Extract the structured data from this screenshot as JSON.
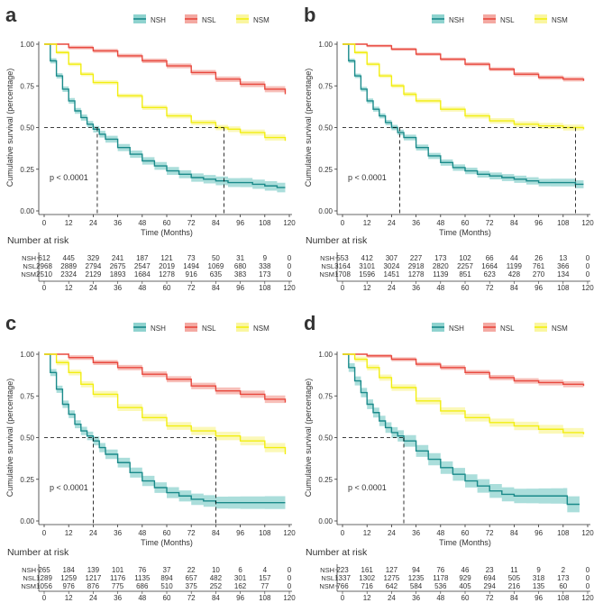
{
  "colors": {
    "NSH": "#1a8a8a",
    "NSL": "#e8483e",
    "NSM": "#f2ee10",
    "NSH_ci": "#8fd3cf",
    "NSL_ci": "#f4a9a2",
    "NSM_ci": "#faf6a0"
  },
  "chart_data": [
    {
      "type": "line",
      "panel_label": "a",
      "legend": [
        "NSH",
        "NSL",
        "NSM"
      ],
      "xlabel": "Time (Months)",
      "ylabel": "Cumulative survival (percentage)",
      "xlim": [
        0,
        120
      ],
      "ylim": [
        0,
        1
      ],
      "x_ticks": [
        "0",
        "12",
        "24",
        "36",
        "48",
        "60",
        "72",
        "84",
        "96",
        "108",
        "120"
      ],
      "y_ticks": [
        "0.00",
        "0.25",
        "0.50",
        "0.75",
        "1.00"
      ],
      "pvalue_text": "p < 0.0001",
      "median_lines": [
        26,
        88
      ],
      "series": [
        {
          "name": "NSH",
          "x": [
            0,
            3,
            6,
            9,
            12,
            15,
            18,
            21,
            24,
            27,
            30,
            36,
            42,
            48,
            54,
            60,
            66,
            72,
            78,
            84,
            90,
            96,
            102,
            108,
            114,
            118
          ],
          "y": [
            1,
            0.9,
            0.81,
            0.73,
            0.66,
            0.6,
            0.56,
            0.52,
            0.49,
            0.46,
            0.43,
            0.38,
            0.34,
            0.3,
            0.27,
            0.24,
            0.22,
            0.2,
            0.19,
            0.18,
            0.17,
            0.17,
            0.16,
            0.15,
            0.14,
            0.14
          ],
          "ci": 0.03
        },
        {
          "name": "NSL",
          "x": [
            0,
            12,
            24,
            36,
            48,
            60,
            72,
            84,
            96,
            108,
            118
          ],
          "y": [
            1,
            0.98,
            0.96,
            0.93,
            0.9,
            0.87,
            0.83,
            0.79,
            0.76,
            0.73,
            0.7
          ],
          "ci": 0.02
        },
        {
          "name": "NSM",
          "x": [
            0,
            6,
            12,
            18,
            24,
            36,
            48,
            60,
            72,
            84,
            90,
            96,
            108,
            118
          ],
          "y": [
            1,
            0.95,
            0.88,
            0.82,
            0.77,
            0.69,
            0.62,
            0.57,
            0.53,
            0.5,
            0.49,
            0.47,
            0.44,
            0.42
          ],
          "ci": 0.02
        }
      ],
      "risk_table": {
        "title": "Number at risk",
        "rows": [
          {
            "name": "NSH",
            "values": [
              "612",
              "445",
              "329",
              "241",
              "187",
              "121",
              "73",
              "50",
              "31",
              "9",
              "0"
            ]
          },
          {
            "name": "NSL",
            "values": [
              "2968",
              "2889",
              "2794",
              "2675",
              "2547",
              "2019",
              "1494",
              "1069",
              "680",
              "338",
              "0"
            ]
          },
          {
            "name": "NSM",
            "values": [
              "2510",
              "2324",
              "2129",
              "1893",
              "1684",
              "1278",
              "916",
              "635",
              "383",
              "173",
              "0"
            ]
          }
        ]
      }
    },
    {
      "type": "line",
      "panel_label": "b",
      "legend": [
        "NSH",
        "NSL",
        "NSM"
      ],
      "xlabel": "Time (Months)",
      "ylabel": "Cumulative survival (percentage)",
      "xlim": [
        0,
        120
      ],
      "ylim": [
        0,
        1
      ],
      "x_ticks": [
        "0",
        "12",
        "24",
        "36",
        "48",
        "60",
        "72",
        "84",
        "96",
        "108",
        "120"
      ],
      "y_ticks": [
        "0.00",
        "0.25",
        "0.50",
        "0.75",
        "1.00"
      ],
      "pvalue_text": "p < 0.0001",
      "median_lines": [
        28,
        114
      ],
      "series": [
        {
          "name": "NSH",
          "x": [
            0,
            3,
            6,
            9,
            12,
            15,
            18,
            21,
            24,
            27,
            30,
            36,
            42,
            48,
            54,
            60,
            66,
            72,
            78,
            84,
            90,
            96,
            102,
            108,
            114,
            118
          ],
          "y": [
            1,
            0.9,
            0.81,
            0.73,
            0.66,
            0.61,
            0.57,
            0.53,
            0.5,
            0.47,
            0.44,
            0.38,
            0.33,
            0.29,
            0.26,
            0.24,
            0.22,
            0.21,
            0.2,
            0.19,
            0.18,
            0.17,
            0.17,
            0.17,
            0.16,
            0.16
          ],
          "ci": 0.025
        },
        {
          "name": "NSL",
          "x": [
            0,
            12,
            24,
            36,
            48,
            60,
            72,
            84,
            96,
            108,
            118
          ],
          "y": [
            1,
            0.99,
            0.97,
            0.94,
            0.91,
            0.88,
            0.85,
            0.82,
            0.8,
            0.79,
            0.78
          ],
          "ci": 0.015
        },
        {
          "name": "NSM",
          "x": [
            0,
            6,
            12,
            18,
            24,
            30,
            36,
            48,
            60,
            72,
            84,
            96,
            108,
            118
          ],
          "y": [
            1,
            0.95,
            0.88,
            0.81,
            0.75,
            0.7,
            0.66,
            0.61,
            0.57,
            0.54,
            0.52,
            0.51,
            0.5,
            0.49
          ],
          "ci": 0.02
        }
      ],
      "risk_table": {
        "title": "Number at risk",
        "rows": [
          {
            "name": "NSH",
            "values": [
              "553",
              "412",
              "307",
              "227",
              "173",
              "102",
              "66",
              "44",
              "26",
              "13",
              "0"
            ]
          },
          {
            "name": "NSL",
            "values": [
              "3164",
              "3101",
              "3024",
              "2918",
              "2820",
              "2257",
              "1664",
              "1199",
              "761",
              "366",
              "0"
            ]
          },
          {
            "name": "NSM",
            "values": [
              "1708",
              "1596",
              "1451",
              "1278",
              "1139",
              "851",
              "623",
              "428",
              "270",
              "134",
              "0"
            ]
          }
        ]
      }
    },
    {
      "type": "line",
      "panel_label": "c",
      "legend": [
        "NSH",
        "NSL",
        "NSM"
      ],
      "xlabel": "Time (Months)",
      "ylabel": "Cumulative survival (percentage)",
      "xlim": [
        0,
        120
      ],
      "ylim": [
        0,
        1
      ],
      "x_ticks": [
        "0",
        "12",
        "24",
        "36",
        "48",
        "60",
        "72",
        "84",
        "96",
        "108",
        "120"
      ],
      "y_ticks": [
        "0.00",
        "0.25",
        "0.50",
        "0.75",
        "1.00"
      ],
      "pvalue_text": "p < 0.0001",
      "median_lines": [
        24,
        84
      ],
      "series": [
        {
          "name": "NSH",
          "x": [
            0,
            3,
            6,
            9,
            12,
            15,
            18,
            21,
            24,
            27,
            30,
            36,
            42,
            48,
            54,
            60,
            66,
            72,
            78,
            84,
            90,
            96,
            108,
            118
          ],
          "y": [
            1,
            0.89,
            0.79,
            0.7,
            0.64,
            0.58,
            0.54,
            0.51,
            0.48,
            0.44,
            0.4,
            0.35,
            0.29,
            0.24,
            0.2,
            0.17,
            0.15,
            0.13,
            0.12,
            0.11,
            0.11,
            0.11,
            0.11,
            0.11
          ],
          "ci": 0.04
        },
        {
          "name": "NSL",
          "x": [
            0,
            12,
            24,
            36,
            48,
            60,
            72,
            84,
            96,
            108,
            118
          ],
          "y": [
            1,
            0.98,
            0.95,
            0.92,
            0.88,
            0.85,
            0.81,
            0.78,
            0.76,
            0.73,
            0.71
          ],
          "ci": 0.025
        },
        {
          "name": "NSM",
          "x": [
            0,
            6,
            12,
            18,
            24,
            36,
            48,
            60,
            72,
            84,
            96,
            108,
            118
          ],
          "y": [
            1,
            0.95,
            0.89,
            0.82,
            0.76,
            0.68,
            0.62,
            0.57,
            0.54,
            0.51,
            0.48,
            0.44,
            0.4
          ],
          "ci": 0.03
        }
      ],
      "risk_table": {
        "title": "Number at risk",
        "rows": [
          {
            "name": "NSH",
            "values": [
              "265",
              "184",
              "139",
              "101",
              "76",
              "37",
              "22",
              "10",
              "6",
              "4",
              "0"
            ]
          },
          {
            "name": "NSL",
            "values": [
              "1289",
              "1259",
              "1217",
              "1176",
              "1135",
              "894",
              "657",
              "482",
              "301",
              "157",
              "0"
            ]
          },
          {
            "name": "NSM",
            "values": [
              "1056",
              "976",
              "876",
              "775",
              "686",
              "510",
              "375",
              "252",
              "162",
              "77",
              "0"
            ]
          }
        ]
      }
    },
    {
      "type": "line",
      "panel_label": "d",
      "legend": [
        "NSH",
        "NSL",
        "NSM"
      ],
      "xlabel": "Time (Months)",
      "ylabel": "Cumulative survival (percentage)",
      "xlim": [
        0,
        120
      ],
      "ylim": [
        0,
        1
      ],
      "x_ticks": [
        "0",
        "12",
        "24",
        "36",
        "48",
        "60",
        "72",
        "84",
        "96",
        "108",
        "120"
      ],
      "y_ticks": [
        "0.00",
        "0.25",
        "0.50",
        "0.75",
        "1.00"
      ],
      "pvalue_text": "p < 0.0001",
      "median_lines": [
        30
      ],
      "series": [
        {
          "name": "NSH",
          "x": [
            0,
            3,
            6,
            9,
            12,
            15,
            18,
            21,
            24,
            27,
            30,
            36,
            42,
            48,
            54,
            60,
            66,
            72,
            78,
            84,
            90,
            96,
            102,
            108,
            110,
            116
          ],
          "y": [
            1,
            0.92,
            0.84,
            0.77,
            0.7,
            0.65,
            0.6,
            0.56,
            0.53,
            0.51,
            0.48,
            0.42,
            0.37,
            0.32,
            0.28,
            0.24,
            0.21,
            0.18,
            0.16,
            0.15,
            0.15,
            0.15,
            0.15,
            0.15,
            0.1,
            0.1
          ],
          "ci": 0.05
        },
        {
          "name": "NSL",
          "x": [
            0,
            12,
            24,
            36,
            48,
            60,
            72,
            84,
            96,
            108,
            118
          ],
          "y": [
            1,
            0.99,
            0.97,
            0.94,
            0.92,
            0.89,
            0.86,
            0.84,
            0.83,
            0.82,
            0.81
          ],
          "ci": 0.02
        },
        {
          "name": "NSM",
          "x": [
            0,
            6,
            12,
            18,
            24,
            36,
            48,
            60,
            72,
            84,
            96,
            108,
            118
          ],
          "y": [
            1,
            0.97,
            0.92,
            0.86,
            0.8,
            0.72,
            0.66,
            0.62,
            0.59,
            0.57,
            0.55,
            0.53,
            0.52
          ],
          "ci": 0.03
        }
      ],
      "risk_table": {
        "title": "Number at risk",
        "rows": [
          {
            "name": "NSH",
            "values": [
              "223",
              "161",
              "127",
              "94",
              "76",
              "46",
              "23",
              "11",
              "9",
              "2",
              "0"
            ]
          },
          {
            "name": "NSL",
            "values": [
              "1337",
              "1302",
              "1275",
              "1235",
              "1178",
              "929",
              "694",
              "505",
              "318",
              "173",
              "0"
            ]
          },
          {
            "name": "NSM",
            "values": [
              "766",
              "716",
              "642",
              "584",
              "536",
              "405",
              "294",
              "216",
              "135",
              "60",
              "0"
            ]
          }
        ]
      }
    }
  ]
}
